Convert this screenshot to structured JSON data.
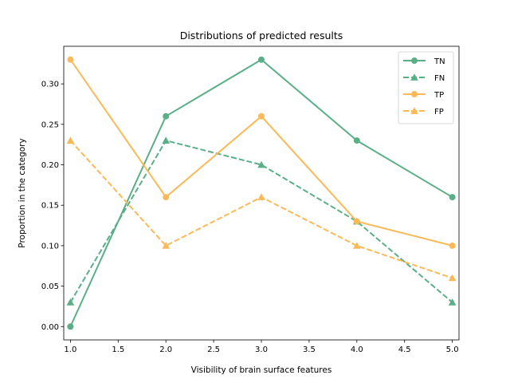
{
  "chart_data": {
    "type": "line",
    "title": "Distributions of predicted results",
    "xlabel": "Visibility of brain surface features",
    "ylabel": "Proportion in the category",
    "x": [
      1.0,
      2.0,
      3.0,
      4.0,
      5.0
    ],
    "xlim": [
      0.93,
      5.07
    ],
    "ylim": [
      -0.0165,
      0.3465
    ],
    "xticks": [
      1.0,
      1.5,
      2.0,
      2.5,
      3.0,
      3.5,
      4.0,
      4.5,
      5.0
    ],
    "xtick_labels": [
      "1.0",
      "1.5",
      "2.0",
      "2.5",
      "3.0",
      "3.5",
      "4.0",
      "4.5",
      "5.0"
    ],
    "yticks": [
      0.0,
      0.05,
      0.1,
      0.15,
      0.2,
      0.25,
      0.3
    ],
    "ytick_labels": [
      "0.00",
      "0.05",
      "0.10",
      "0.15",
      "0.20",
      "0.25",
      "0.30"
    ],
    "grid": false,
    "legend_position": "top-right",
    "series": [
      {
        "name": "TN",
        "values": [
          0.0,
          0.26,
          0.33,
          0.23,
          0.16
        ],
        "color": "#5aaf87",
        "linestyle": "solid",
        "marker": "circle"
      },
      {
        "name": "FN",
        "values": [
          0.03,
          0.23,
          0.2,
          0.13,
          0.03
        ],
        "color": "#5aaf87",
        "linestyle": "dashed",
        "marker": "triangle"
      },
      {
        "name": "TP",
        "values": [
          0.33,
          0.16,
          0.26,
          0.13,
          0.1
        ],
        "color": "#fbb957",
        "linestyle": "solid",
        "marker": "circle"
      },
      {
        "name": "FP",
        "values": [
          0.23,
          0.1,
          0.16,
          0.1,
          0.06
        ],
        "color": "#fbb957",
        "linestyle": "dashed",
        "marker": "triangle"
      }
    ]
  }
}
